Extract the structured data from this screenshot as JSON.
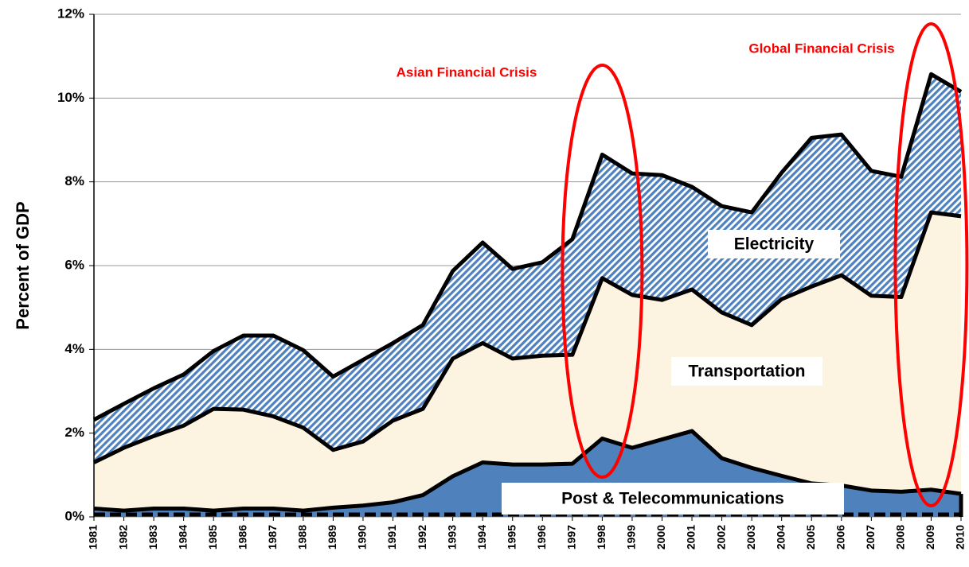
{
  "chart_data": {
    "type": "stacked_area",
    "y_label": "Percent of GDP",
    "categories": [
      "1981",
      "1982",
      "1983",
      "1984",
      "1985",
      "1986",
      "1987",
      "1988",
      "1989",
      "1990",
      "1991",
      "1992",
      "1993",
      "1994",
      "1995",
      "1996",
      "1997",
      "1998",
      "1999",
      "2000",
      "2001",
      "2002",
      "2003",
      "2004",
      "2005",
      "2006",
      "2007",
      "2008",
      "2009",
      "2010"
    ],
    "series": [
      {
        "name": "Post & Telecommunications",
        "color": "#4f81bd",
        "values": [
          0.2,
          0.15,
          0.2,
          0.2,
          0.15,
          0.2,
          0.2,
          0.15,
          0.22,
          0.27,
          0.35,
          0.52,
          0.97,
          1.3,
          1.25,
          1.25,
          1.27,
          1.87,
          1.65,
          1.85,
          2.05,
          1.4,
          1.17,
          0.98,
          0.8,
          0.75,
          0.63,
          0.6,
          0.65,
          0.55
        ]
      },
      {
        "name": "Transportation",
        "color": "#fdf3e1",
        "values": [
          1.1,
          1.5,
          1.73,
          1.98,
          2.43,
          2.36,
          2.2,
          1.98,
          1.38,
          1.53,
          1.95,
          2.06,
          2.81,
          2.85,
          2.53,
          2.6,
          2.6,
          3.83,
          3.65,
          3.33,
          3.38,
          3.48,
          3.41,
          4.22,
          4.7,
          5.02,
          4.65,
          4.65,
          6.62,
          6.63
        ]
      },
      {
        "name": "Electricity",
        "color": "#4f81bd",
        "values": [
          1.02,
          1.05,
          1.14,
          1.22,
          1.38,
          1.77,
          1.93,
          1.85,
          1.75,
          1.95,
          1.85,
          2.0,
          2.09,
          2.4,
          2.14,
          2.23,
          2.76,
          2.95,
          2.9,
          2.98,
          2.45,
          2.54,
          2.69,
          3.02,
          3.55,
          3.36,
          2.98,
          2.87,
          3.3,
          2.97
        ]
      }
    ],
    "ylim": [
      0,
      12
    ],
    "yticks": [
      {
        "value": 0,
        "label": "0%"
      },
      {
        "value": 2,
        "label": "2%"
      },
      {
        "value": 4,
        "label": "4%"
      },
      {
        "value": 6,
        "label": "6%"
      },
      {
        "value": 8,
        "label": "8%"
      },
      {
        "value": 10,
        "label": "10%"
      },
      {
        "value": 12,
        "label": "12%"
      }
    ],
    "grid": true,
    "annotations": [
      {
        "text": "Asian Financial Crisis",
        "category": "1998",
        "color": "#ff0000"
      },
      {
        "text": "Global Financial Crisis",
        "category": "2009",
        "color": "#ff0000"
      }
    ]
  }
}
